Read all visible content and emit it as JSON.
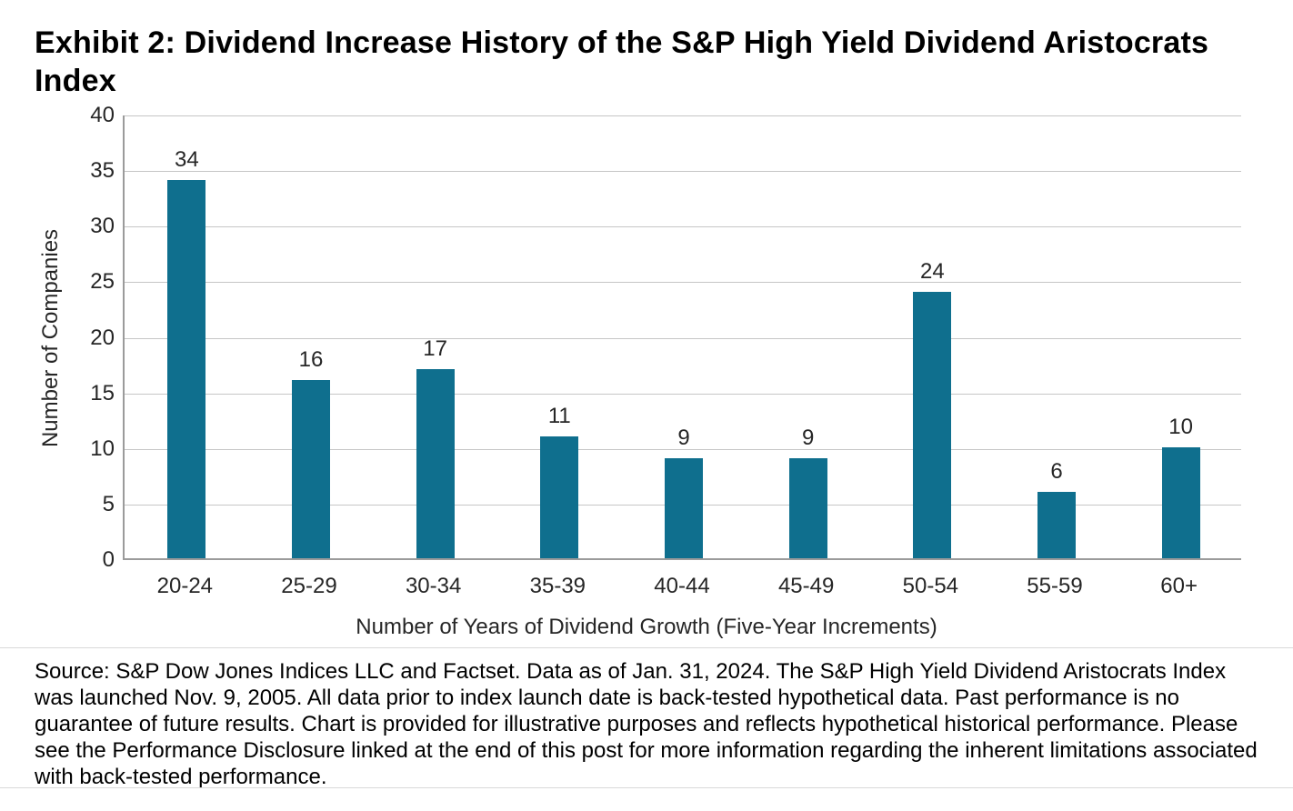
{
  "page": {
    "title": "Exhibit 2: Dividend Increase History of the S&P High Yield Dividend Aristocrats Index",
    "source_text": "Source: S&P Dow Jones Indices LLC and Factset. Data as of Jan. 31, 2024. The S&P High Yield Dividend Aristocrats Index was launched Nov. 9, 2005. All data prior to index launch date is back-tested hypothetical data. Past performance is no guarantee of future results. Chart is provided for illustrative purposes and reflects hypothetical historical performance. Please see the Performance Disclosure linked at the end of this post for more information regarding the inherent limitations associated with back-tested performance."
  },
  "chart_data": {
    "type": "bar",
    "title": "Exhibit 2: Dividend Increase History of the S&P High Yield Dividend Aristocrats Index",
    "categories": [
      "20-24",
      "25-29",
      "30-34",
      "35-39",
      "40-44",
      "45-49",
      "50-54",
      "55-59",
      "60+"
    ],
    "values": [
      34,
      16,
      17,
      11,
      9,
      9,
      24,
      6,
      10
    ],
    "xlabel": "Number of Years of Dividend Growth (Five-Year Increments)",
    "ylabel": "Number of Companies",
    "ylim": [
      0,
      40
    ],
    "yticks": [
      0,
      5,
      10,
      15,
      20,
      25,
      30,
      35,
      40
    ],
    "grid": true,
    "legend": false,
    "data_labels": true,
    "colors": {
      "bar": "#0f6f8e",
      "grid": "#c6c6c6",
      "axis": "#9b9b9b",
      "separator": "#d9d9d9",
      "text": "#262626"
    }
  }
}
